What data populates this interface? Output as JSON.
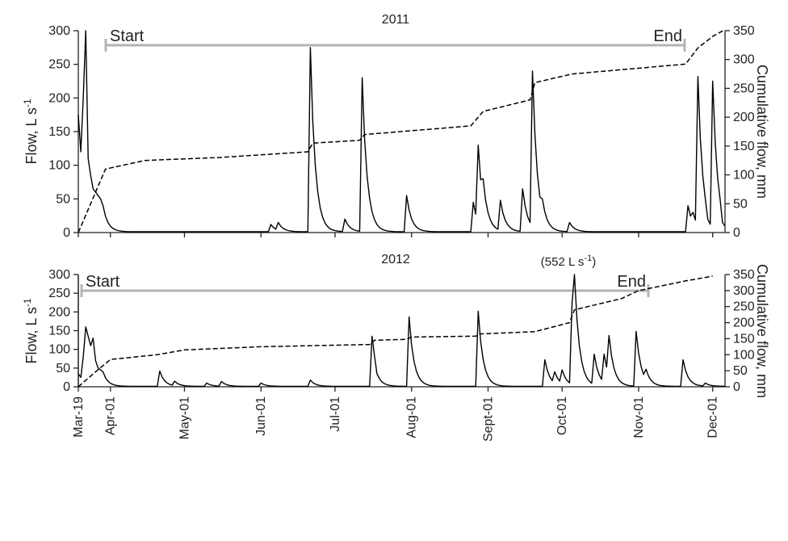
{
  "chart_data": [
    {
      "type": "line",
      "title": "2011",
      "ylabel_left": "Flow, L s",
      "ylabel_left_sup": "-1",
      "ylabel_right": "Cumulative flow, mm",
      "ylim_left": [
        0,
        300
      ],
      "ylim_right": [
        0,
        350
      ],
      "yticks_left": [
        "0",
        "50",
        "100",
        "150",
        "200",
        "250",
        "300"
      ],
      "yticks_right": [
        "0",
        "50",
        "100",
        "150",
        "200",
        "250",
        "300",
        "350"
      ],
      "period": {
        "start_label": "Start",
        "end_label": "End",
        "start": "2011-03-30",
        "end": "2011-11-21"
      },
      "series": [
        {
          "name": "Flow",
          "style": "solid",
          "peaks": [
            {
              "x": "2011-03-19",
              "y": 175
            },
            {
              "x": "2011-03-20",
              "y": 120
            },
            {
              "x": "2011-03-21",
              "y": 200
            },
            {
              "x": "2011-03-22",
              "y": 300
            },
            {
              "x": "2011-03-23",
              "y": 110
            },
            {
              "x": "2011-03-24",
              "y": 85
            },
            {
              "x": "2011-03-25",
              "y": 65
            },
            {
              "x": "2011-03-26",
              "y": 60
            },
            {
              "x": "2011-03-27",
              "y": 55
            },
            {
              "x": "2011-03-28",
              "y": 50
            },
            {
              "x": "2011-03-29",
              "y": 40
            },
            {
              "x": "2011-06-05",
              "y": 12
            },
            {
              "x": "2011-06-08",
              "y": 15
            },
            {
              "x": "2011-06-21",
              "y": 275
            },
            {
              "x": "2011-07-05",
              "y": 20
            },
            {
              "x": "2011-07-12",
              "y": 230
            },
            {
              "x": "2011-07-30",
              "y": 55
            },
            {
              "x": "2011-08-26",
              "y": 45
            },
            {
              "x": "2011-08-28",
              "y": 130
            },
            {
              "x": "2011-08-30",
              "y": 80
            },
            {
              "x": "2011-09-06",
              "y": 48
            },
            {
              "x": "2011-09-15",
              "y": 65
            },
            {
              "x": "2011-09-19",
              "y": 240
            },
            {
              "x": "2011-09-23",
              "y": 50
            },
            {
              "x": "2011-10-04",
              "y": 15
            },
            {
              "x": "2011-11-21",
              "y": 40
            },
            {
              "x": "2011-11-23",
              "y": 30
            },
            {
              "x": "2011-11-25",
              "y": 232
            },
            {
              "x": "2011-11-29",
              "y": 20
            },
            {
              "x": "2011-12-01",
              "y": 225
            },
            {
              "x": "2011-12-05",
              "y": 15
            }
          ]
        },
        {
          "name": "Cumulative flow",
          "style": "dashed",
          "axis": "right",
          "points": [
            {
              "x": "2011-03-19",
              "y": 0
            },
            {
              "x": "2011-03-24",
              "y": 50
            },
            {
              "x": "2011-03-30",
              "y": 110
            },
            {
              "x": "2011-04-15",
              "y": 125
            },
            {
              "x": "2011-05-15",
              "y": 130
            },
            {
              "x": "2011-06-20",
              "y": 140
            },
            {
              "x": "2011-06-22",
              "y": 155
            },
            {
              "x": "2011-07-11",
              "y": 160
            },
            {
              "x": "2011-07-13",
              "y": 170
            },
            {
              "x": "2011-08-25",
              "y": 185
            },
            {
              "x": "2011-08-30",
              "y": 210
            },
            {
              "x": "2011-09-18",
              "y": 230
            },
            {
              "x": "2011-09-20",
              "y": 260
            },
            {
              "x": "2011-10-05",
              "y": 275
            },
            {
              "x": "2011-11-20",
              "y": 292
            },
            {
              "x": "2011-11-25",
              "y": 320
            },
            {
              "x": "2011-12-01",
              "y": 340
            },
            {
              "x": "2011-12-06",
              "y": 352
            }
          ]
        }
      ]
    },
    {
      "type": "line",
      "title": "2012",
      "annotation": "(552 L s",
      "annotation_sup": "-1",
      "annotation_close": ")",
      "ylabel_left": "Flow, L s",
      "ylabel_left_sup": "-1",
      "ylabel_right": "Cumulative flow, mm",
      "ylim_left": [
        0,
        300
      ],
      "ylim_right": [
        0,
        350
      ],
      "yticks_left": [
        "0",
        "50",
        "100",
        "150",
        "200",
        "250",
        "300"
      ],
      "yticks_right": [
        "0",
        "50",
        "100",
        "150",
        "200",
        "250",
        "300",
        "350"
      ],
      "xticks": [
        "Mar-19",
        "Apr-01",
        "May-01",
        "Jun-01",
        "Jul-01",
        "Aug-01",
        "Sept-01",
        "Oct-01",
        "Nov-01",
        "Dec-01"
      ],
      "period": {
        "start_label": "Start",
        "end_label": "End",
        "start": "2012-03-19",
        "end": "2012-11-01"
      },
      "series": [
        {
          "name": "Flow",
          "style": "solid",
          "peaks": [
            {
              "x": "2012-03-19",
              "y": 35
            },
            {
              "x": "2012-03-20",
              "y": 25
            },
            {
              "x": "2012-03-21",
              "y": 80
            },
            {
              "x": "2012-03-22",
              "y": 160
            },
            {
              "x": "2012-03-23",
              "y": 135
            },
            {
              "x": "2012-03-24",
              "y": 110
            },
            {
              "x": "2012-03-25",
              "y": 130
            },
            {
              "x": "2012-03-26",
              "y": 70
            },
            {
              "x": "2012-03-27",
              "y": 50
            },
            {
              "x": "2012-03-28",
              "y": 45
            },
            {
              "x": "2012-03-29",
              "y": 40
            },
            {
              "x": "2012-04-21",
              "y": 42
            },
            {
              "x": "2012-04-27",
              "y": 15
            },
            {
              "x": "2012-05-10",
              "y": 10
            },
            {
              "x": "2012-05-16",
              "y": 14
            },
            {
              "x": "2012-06-01",
              "y": 10
            },
            {
              "x": "2012-06-21",
              "y": 18
            },
            {
              "x": "2012-07-16",
              "y": 135
            },
            {
              "x": "2012-07-18",
              "y": 35
            },
            {
              "x": "2012-07-31",
              "y": 187
            },
            {
              "x": "2012-08-28",
              "y": 202
            },
            {
              "x": "2012-09-24",
              "y": 72
            },
            {
              "x": "2012-09-28",
              "y": 40
            },
            {
              "x": "2012-10-01",
              "y": 45
            },
            {
              "x": "2012-10-05",
              "y": 222
            },
            {
              "x": "2012-10-06",
              "y": 300
            },
            {
              "x": "2012-10-14",
              "y": 87
            },
            {
              "x": "2012-10-18",
              "y": 87
            },
            {
              "x": "2012-10-20",
              "y": 137
            },
            {
              "x": "2012-10-31",
              "y": 148
            },
            {
              "x": "2012-11-04",
              "y": 47
            },
            {
              "x": "2012-11-19",
              "y": 72
            },
            {
              "x": "2012-11-28",
              "y": 10
            }
          ]
        },
        {
          "name": "Cumulative flow",
          "style": "dashed",
          "axis": "right",
          "points": [
            {
              "x": "2012-03-19",
              "y": 0
            },
            {
              "x": "2012-03-25",
              "y": 40
            },
            {
              "x": "2012-04-01",
              "y": 85
            },
            {
              "x": "2012-04-20",
              "y": 100
            },
            {
              "x": "2012-05-01",
              "y": 115
            },
            {
              "x": "2012-06-01",
              "y": 125
            },
            {
              "x": "2012-07-15",
              "y": 132
            },
            {
              "x": "2012-07-17",
              "y": 145
            },
            {
              "x": "2012-07-30",
              "y": 148
            },
            {
              "x": "2012-08-01",
              "y": 155
            },
            {
              "x": "2012-08-27",
              "y": 158
            },
            {
              "x": "2012-08-29",
              "y": 165
            },
            {
              "x": "2012-09-20",
              "y": 172
            },
            {
              "x": "2012-10-04",
              "y": 200
            },
            {
              "x": "2012-10-06",
              "y": 240
            },
            {
              "x": "2012-10-25",
              "y": 275
            },
            {
              "x": "2012-11-01",
              "y": 300
            },
            {
              "x": "2012-11-20",
              "y": 330
            },
            {
              "x": "2012-12-01",
              "y": 345
            }
          ]
        }
      ]
    }
  ]
}
